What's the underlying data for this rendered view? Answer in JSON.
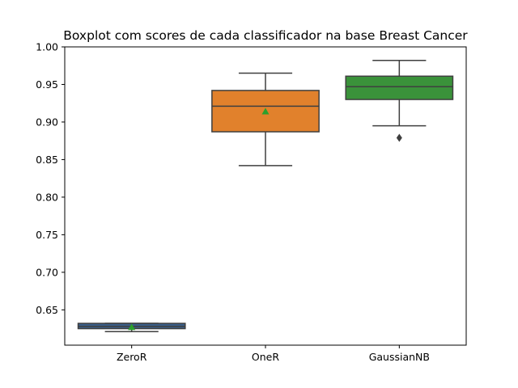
{
  "chart_data": {
    "type": "box",
    "title": "Boxplot com scores de cada classificador na base Breast Cancer",
    "xlabel": "",
    "ylabel": "",
    "ylim": [
      0.603,
      1.0
    ],
    "yticks": [
      "1.00",
      "0.95",
      "0.90",
      "0.85",
      "0.80",
      "0.75",
      "0.70",
      "0.65"
    ],
    "ytick_values": [
      1.0,
      0.95,
      0.9,
      0.85,
      0.8,
      0.75,
      0.7,
      0.65
    ],
    "grid": false,
    "categories": [
      "ZeroR",
      "OneR",
      "GaussianNB"
    ],
    "series": [
      {
        "category": "ZeroR",
        "color": "#3a5f8a",
        "whisker_low": 0.621,
        "q1": 0.625,
        "median": 0.628,
        "q3": 0.632,
        "whisker_high": 0.632,
        "mean": 0.627,
        "outliers": []
      },
      {
        "category": "OneR",
        "color": "#e1812c",
        "whisker_low": 0.842,
        "q1": 0.887,
        "median": 0.921,
        "q3": 0.942,
        "whisker_high": 0.965,
        "mean": 0.914,
        "outliers": []
      },
      {
        "category": "GaussianNB",
        "color": "#3a923a",
        "whisker_low": 0.895,
        "q1": 0.93,
        "median": 0.947,
        "q3": 0.961,
        "whisker_high": 0.982,
        "mean": null,
        "outliers": [
          0.879
        ]
      }
    ],
    "mean_marker_color": "#2ca02c",
    "line_color": "#3f3f3f"
  }
}
